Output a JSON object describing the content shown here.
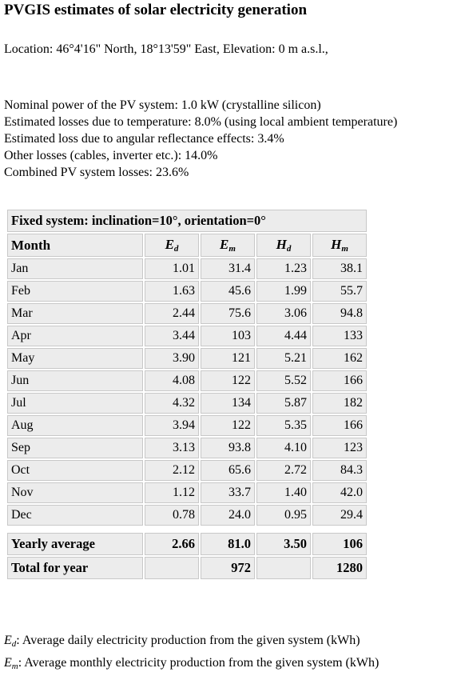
{
  "title": "PVGIS estimates of solar electricity generation",
  "location": "Location: 46°4'16\" North, 18°13'59\" East, Elevation: 0 m a.s.l.,",
  "specs": [
    "Nominal power of the PV system: 1.0 kW (crystalline silicon)",
    "Estimated losses due to temperature: 8.0% (using local ambient temperature)",
    "Estimated loss due to angular reflectance effects: 3.4%",
    "Other losses (cables, inverter etc.): 14.0%",
    "Combined PV system losses: 23.6%"
  ],
  "table": {
    "caption": "Fixed system: inclination=10°, orientation=0°",
    "header": {
      "month": "Month",
      "ed": {
        "base": "E",
        "sub": "d"
      },
      "em": {
        "base": "E",
        "sub": "m"
      },
      "hd": {
        "base": "H",
        "sub": "d"
      },
      "hm": {
        "base": "H",
        "sub": "m"
      }
    },
    "rows": [
      {
        "month": "Jan",
        "ed": "1.01",
        "em": "31.4",
        "hd": "1.23",
        "hm": "38.1"
      },
      {
        "month": "Feb",
        "ed": "1.63",
        "em": "45.6",
        "hd": "1.99",
        "hm": "55.7"
      },
      {
        "month": "Mar",
        "ed": "2.44",
        "em": "75.6",
        "hd": "3.06",
        "hm": "94.8"
      },
      {
        "month": "Apr",
        "ed": "3.44",
        "em": "103",
        "hd": "4.44",
        "hm": "133"
      },
      {
        "month": "May",
        "ed": "3.90",
        "em": "121",
        "hd": "5.21",
        "hm": "162"
      },
      {
        "month": "Jun",
        "ed": "4.08",
        "em": "122",
        "hd": "5.52",
        "hm": "166"
      },
      {
        "month": "Jul",
        "ed": "4.32",
        "em": "134",
        "hd": "5.87",
        "hm": "182"
      },
      {
        "month": "Aug",
        "ed": "3.94",
        "em": "122",
        "hd": "5.35",
        "hm": "166"
      },
      {
        "month": "Sep",
        "ed": "3.13",
        "em": "93.8",
        "hd": "4.10",
        "hm": "123"
      },
      {
        "month": "Oct",
        "ed": "2.12",
        "em": "65.6",
        "hd": "2.72",
        "hm": "84.3"
      },
      {
        "month": "Nov",
        "ed": "1.12",
        "em": "33.7",
        "hd": "1.40",
        "hm": "42.0"
      },
      {
        "month": "Dec",
        "ed": "0.78",
        "em": "24.0",
        "hd": "0.95",
        "hm": "29.4"
      }
    ],
    "yearly_average": {
      "label": "Yearly average",
      "ed": "2.66",
      "em": "81.0",
      "hd": "3.50",
      "hm": "106"
    },
    "total_for_year": {
      "label": "Total for year",
      "em": "972",
      "hm": "1280"
    }
  },
  "legend": [
    {
      "base": "E",
      "sub": "d",
      "text": ": Average daily electricity production from the given system (kWh)"
    },
    {
      "base": "E",
      "sub": "m",
      "text": ": Average monthly electricity production from the given system (kWh)"
    }
  ]
}
